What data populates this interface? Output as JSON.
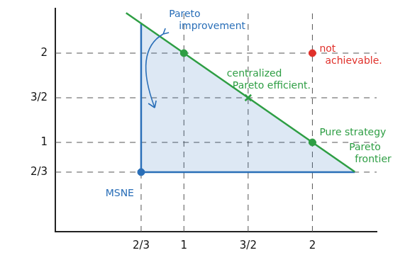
{
  "chart_data": {
    "type": "line",
    "xlim": [
      0,
      2.5
    ],
    "ylim": [
      0,
      2.5
    ],
    "xticks": [
      {
        "value": 0.667,
        "label": "2/3"
      },
      1,
      {
        "value": 1.5,
        "label": "3/2"
      },
      2
    ],
    "yticks": [
      {
        "value": 0.667,
        "label": "2/3"
      },
      1,
      {
        "value": 1.5,
        "label": "3/2"
      },
      2
    ],
    "grid": true,
    "series": [
      {
        "type": "area",
        "color": "#2a6fb8",
        "marker": "none",
        "line_style": "solid",
        "x": [
          0.667,
          0.667,
          2.33
        ],
        "values": [
          2.33,
          0.667,
          0.667
        ]
      },
      {
        "name": "Pareto frontier",
        "type": "line",
        "color": "#2e9e44",
        "marker": "none",
        "line_style": "solid",
        "x": [
          0.55,
          2.33
        ],
        "values": [
          2.45,
          0.67
        ]
      },
      {
        "type": "scatter",
        "color": "#2e9e44",
        "marker": "circle",
        "x": [
          1
        ],
        "values": [
          2
        ]
      },
      {
        "name": "Pure strategy",
        "type": "scatter",
        "color": "#2e9e44",
        "marker": "circle",
        "x": [
          2
        ],
        "values": [
          1
        ]
      },
      {
        "name": "centralized Pareto efficient.",
        "type": "scatter",
        "color": "#2e9e44",
        "marker": "x",
        "x": [
          1.5
        ],
        "values": [
          1.5
        ]
      },
      {
        "name": "not achievable.",
        "type": "scatter",
        "color": "#e0302a",
        "marker": "circle",
        "x": [
          2
        ],
        "values": [
          2
        ]
      },
      {
        "name": "MSNE",
        "type": "scatter",
        "color": "#2a6fb8",
        "marker": "circle",
        "x": [
          0.667
        ],
        "values": [
          0.667
        ]
      }
    ],
    "annotations": [
      {
        "text": "Pareto improvement",
        "color": "#2a6fb8"
      }
    ]
  }
}
